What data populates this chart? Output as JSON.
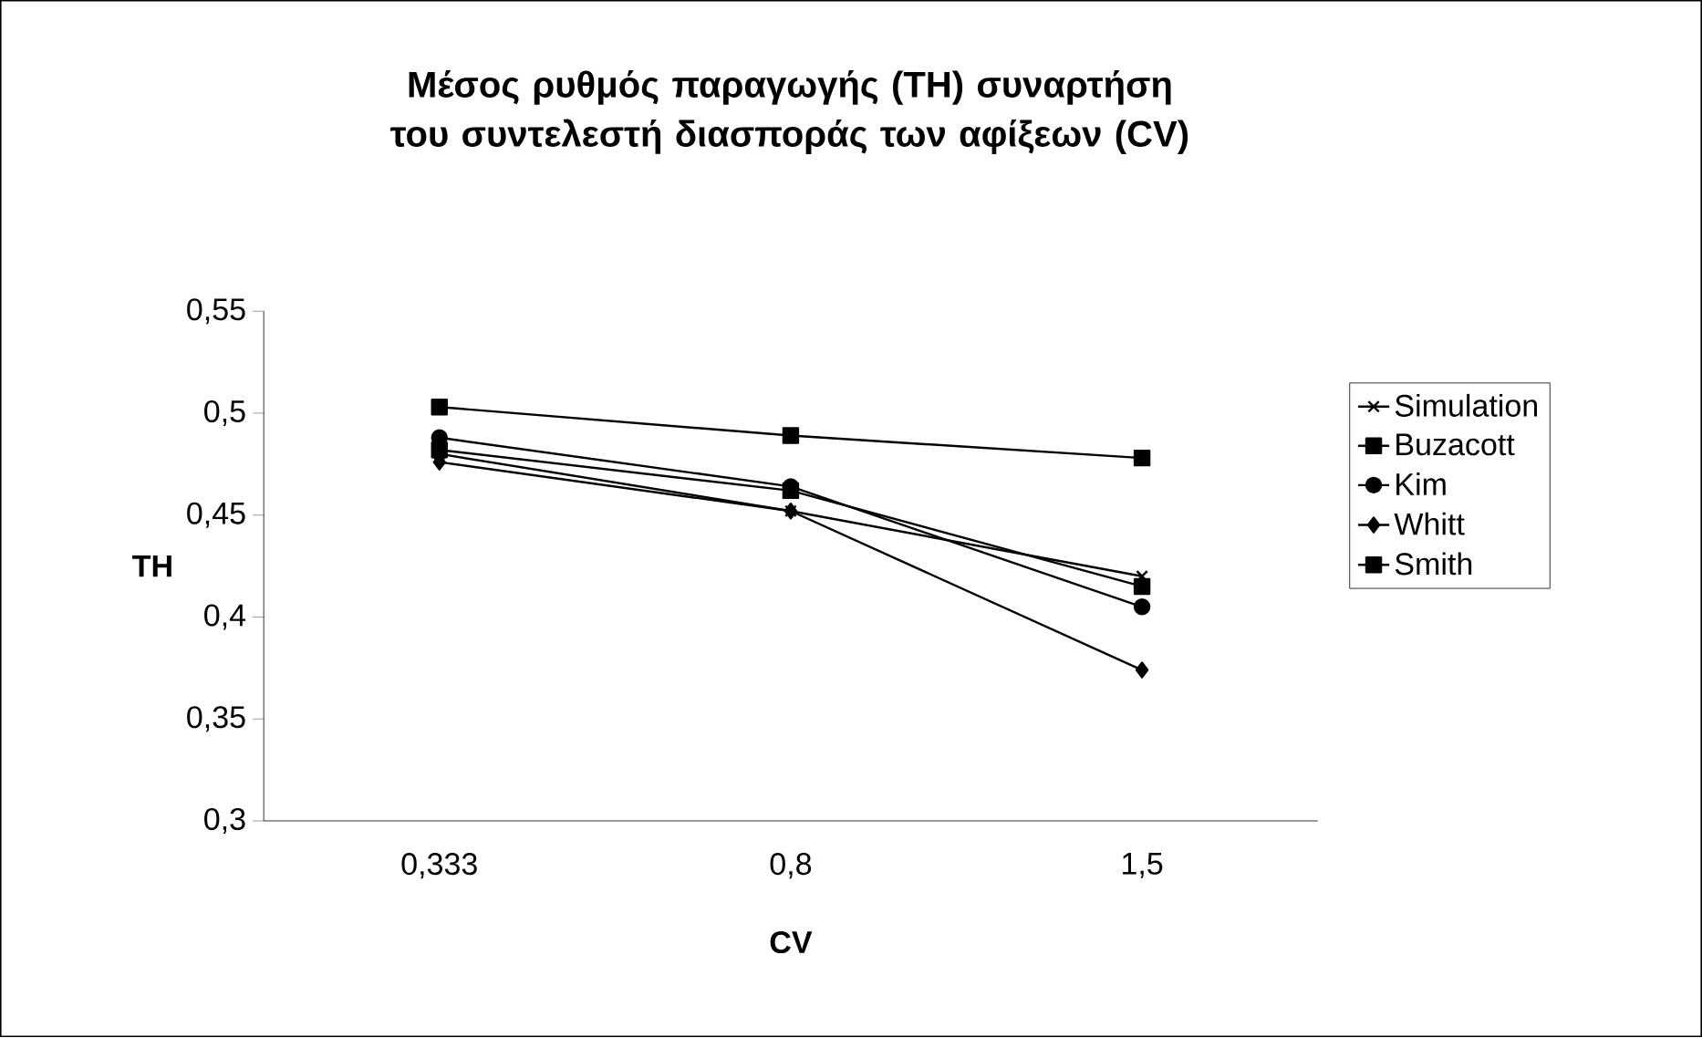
{
  "chart_data": {
    "type": "line",
    "title": "Μέσος ρυθμός παραγωγής (TH) συναρτήση του συντελεστή διασποράς των αφίξεων (CV)",
    "xlabel": "CV",
    "ylabel": "TH",
    "categories": [
      "0,333",
      "0,8",
      "1,5"
    ],
    "series": [
      {
        "name": "Simulation",
        "color": "#000000",
        "marker": "cross",
        "values": [
          0.48,
          0.452,
          0.42
        ]
      },
      {
        "name": "Buzacott",
        "color": "#000000",
        "marker": "square",
        "values": [
          0.482,
          0.462,
          0.415
        ]
      },
      {
        "name": "Kim",
        "color": "#000000",
        "marker": "circle",
        "values": [
          0.488,
          0.464,
          0.405
        ]
      },
      {
        "name": "Whitt",
        "color": "#000000",
        "marker": "diamond",
        "values": [
          0.476,
          0.452,
          0.374
        ]
      },
      {
        "name": "Smith",
        "color": "#000000",
        "marker": "square",
        "values": [
          0.503,
          0.489,
          0.478
        ]
      }
    ],
    "ylim": [
      0.3,
      0.55
    ],
    "yticks": [
      {
        "value": 0.3,
        "label": "0,3"
      },
      {
        "value": 0.35,
        "label": "0,35"
      },
      {
        "value": 0.4,
        "label": "0,4"
      },
      {
        "value": 0.45,
        "label": "0,45"
      },
      {
        "value": 0.5,
        "label": "0,5"
      },
      {
        "value": 0.55,
        "label": "0,55"
      }
    ],
    "grid": false,
    "legend": "right",
    "line_style": "solid"
  }
}
